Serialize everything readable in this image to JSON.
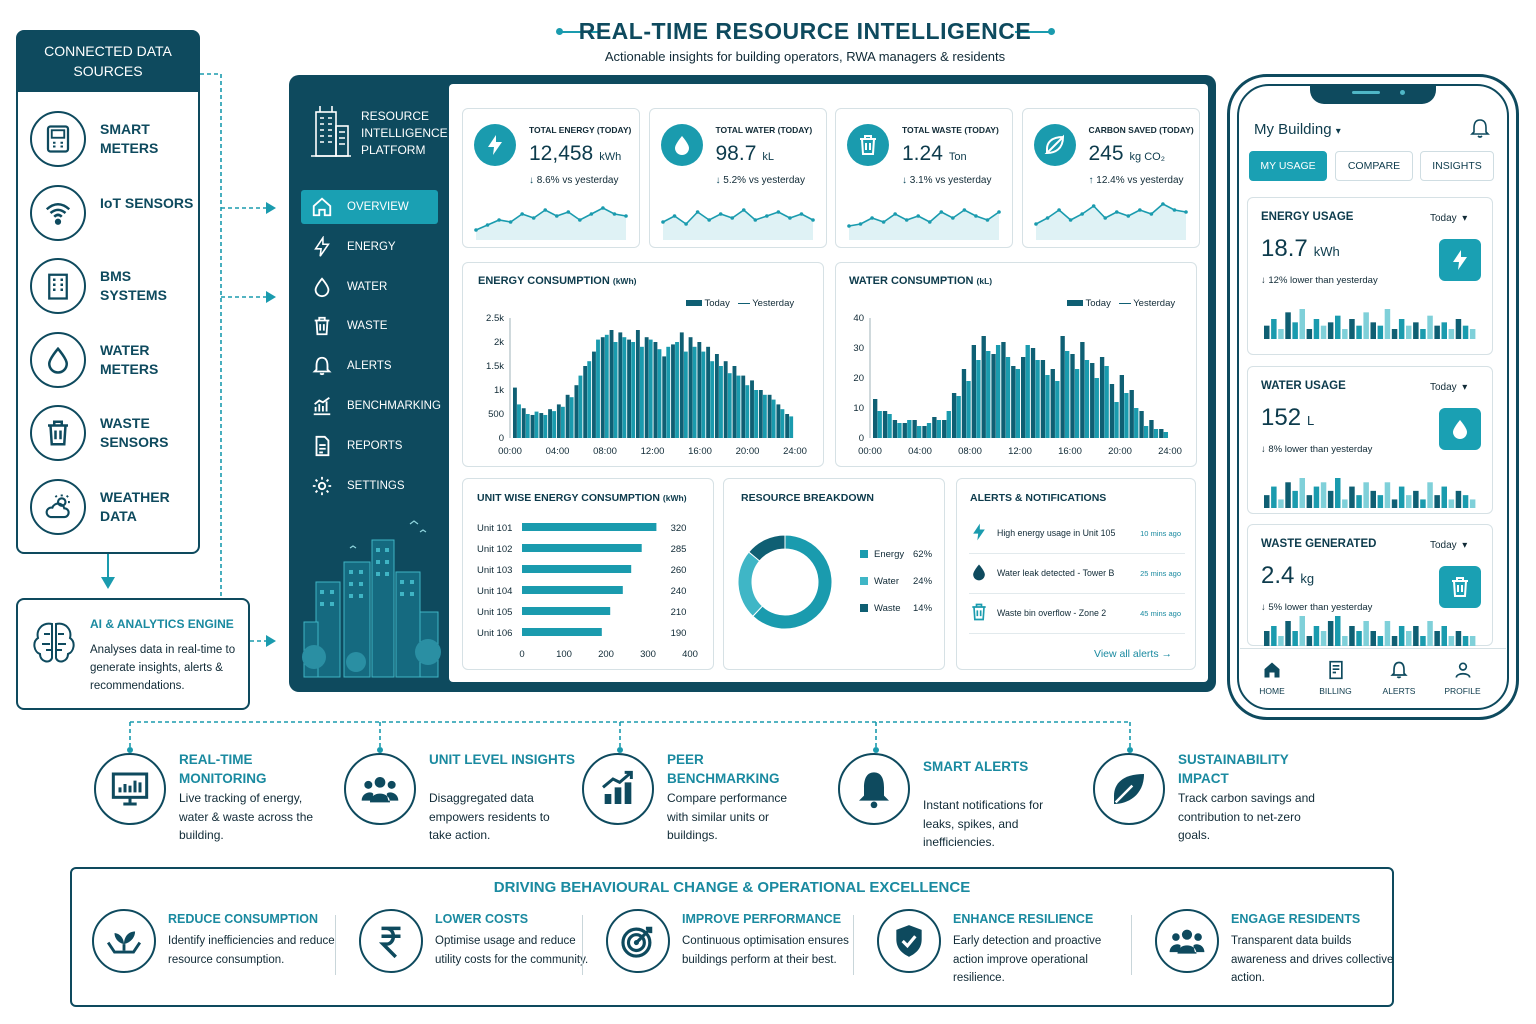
{
  "header": {
    "title": "REAL-TIME RESOURCE INTELLIGENCE",
    "subtitle": "Actionable insights for building operators, RWA managers & residents"
  },
  "sources": {
    "title": "CONNECTED DATA SOURCES",
    "items": [
      {
        "label": "SMART METERS",
        "icon": "meter-icon"
      },
      {
        "label": "IoT SENSORS",
        "icon": "wifi-sensor-icon"
      },
      {
        "label": "BMS SYSTEMS",
        "icon": "bms-icon"
      },
      {
        "label": "WATER METERS",
        "icon": "water-drop-icon"
      },
      {
        "label": "WASTE SENSORS",
        "icon": "trash-icon"
      },
      {
        "label": "WEATHER DATA",
        "icon": "weather-icon"
      }
    ]
  },
  "ai": {
    "title": "AI & ANALYTICS ENGINE",
    "desc": "Analyses data in real-time to generate insights, alerts & recommendations."
  },
  "platform": {
    "name": "RESOURCE INTELLIGENCE PLATFORM",
    "nav": [
      {
        "label": "OVERVIEW",
        "active": true
      },
      {
        "label": "ENERGY"
      },
      {
        "label": "WATER"
      },
      {
        "label": "WASTE"
      },
      {
        "label": "ALERTS"
      },
      {
        "label": "BENCHMARKING"
      },
      {
        "label": "REPORTS"
      },
      {
        "label": "SETTINGS"
      }
    ]
  },
  "kpis": [
    {
      "label": "TOTAL ENERGY (TODAY)",
      "value": "12,458",
      "unit": "kWh",
      "change": "8.6% vs yesterday",
      "dir": "down"
    },
    {
      "label": "TOTAL WATER (TODAY)",
      "value": "98.7",
      "unit": "kL",
      "change": "5.2% vs yesterday",
      "dir": "down"
    },
    {
      "label": "TOTAL WASTE (TODAY)",
      "value": "1.24",
      "unit": "Ton",
      "change": "3.1% vs yesterday",
      "dir": "down"
    },
    {
      "label": "CARBON SAVED (TODAY)",
      "value": "245",
      "unit": "kg CO₂",
      "change": "12.4% vs yesterday",
      "dir": "up"
    }
  ],
  "legend": {
    "today": "Today",
    "yesterday": "Yesterday"
  },
  "chart_data": [
    {
      "type": "bar",
      "title": "ENERGY CONSUMPTION",
      "unit": "(kWh)",
      "x_ticks": [
        "00:00",
        "04:00",
        "08:00",
        "12:00",
        "16:00",
        "20:00",
        "24:00"
      ],
      "y_ticks": [
        "0",
        "500",
        "1k",
        "1.5k",
        "2k",
        "2.5k"
      ],
      "ylim": [
        0,
        2500
      ],
      "series": [
        {
          "name": "Today",
          "values": [
            1050,
            620,
            480,
            520,
            600,
            700,
            900,
            1100,
            1500,
            1800,
            2100,
            2250,
            2200,
            2050,
            2250,
            2100,
            2000,
            1700,
            1950,
            2200,
            2100,
            2000,
            1900,
            1750,
            1600,
            1500,
            1300,
            1200,
            1000,
            900,
            700,
            500
          ]
        },
        {
          "name": "Yesterday",
          "values": [
            700,
            500,
            550,
            480,
            560,
            650,
            850,
            1300,
            1600,
            2050,
            2150,
            2000,
            2100,
            2000,
            1900,
            2050,
            1850,
            1900,
            2000,
            1800,
            1900,
            1800,
            1600,
            1500,
            1350,
            1300,
            1100,
            1000,
            900,
            800,
            600,
            450
          ]
        }
      ]
    },
    {
      "type": "bar",
      "title": "WATER CONSUMPTION",
      "unit": "(kL)",
      "x_ticks": [
        "00:00",
        "04:00",
        "08:00",
        "12:00",
        "16:00",
        "20:00",
        "24:00"
      ],
      "y_ticks": [
        "0",
        "10",
        "20",
        "30",
        "40"
      ],
      "ylim": [
        0,
        40
      ],
      "series": [
        {
          "name": "Today",
          "values": [
            13,
            9,
            6,
            5,
            6,
            4,
            7,
            6,
            15,
            23,
            31,
            34,
            28,
            32,
            24,
            27,
            30,
            26,
            23,
            34,
            28,
            32,
            25,
            27,
            18,
            21,
            16,
            9,
            6,
            3
          ]
        },
        {
          "name": "Yesterday",
          "values": [
            9,
            8,
            5,
            6,
            4,
            5,
            6,
            9,
            14,
            19,
            26,
            29,
            31,
            27,
            23,
            31,
            26,
            21,
            19,
            29,
            23,
            26,
            20,
            24,
            12,
            15,
            10,
            4,
            3,
            2
          ]
        }
      ]
    },
    {
      "type": "bar",
      "orientation": "horizontal",
      "title": "UNIT WISE ENERGY CONSUMPTION",
      "unit": "(kWh)",
      "categories": [
        "Unit 101",
        "Unit 102",
        "Unit 103",
        "Unit 104",
        "Unit 105",
        "Unit 106"
      ],
      "values": [
        320,
        285,
        260,
        240,
        210,
        190
      ],
      "x_ticks": [
        "0",
        "100",
        "200",
        "300",
        "400"
      ],
      "xlim": [
        0,
        400
      ]
    },
    {
      "type": "pie",
      "title": "RESOURCE BREAKDOWN",
      "donut": true,
      "slices": [
        {
          "label": "Energy",
          "value": 62,
          "pct": "62%"
        },
        {
          "label": "Water",
          "value": 24,
          "pct": "24%"
        },
        {
          "label": "Waste",
          "value": 14,
          "pct": "14%"
        }
      ]
    }
  ],
  "alerts": {
    "title": "ALERTS & NOTIFICATIONS",
    "items": [
      {
        "text": "High energy usage in Unit 105",
        "time": "10 mins ago",
        "icon": "bolt-icon"
      },
      {
        "text": "Water leak detected - Tower B",
        "time": "25 mins ago",
        "icon": "water-drop-icon"
      },
      {
        "text": "Waste bin overflow - Zone 2",
        "time": "45 mins ago",
        "icon": "trash-icon"
      }
    ],
    "link": "View all alerts"
  },
  "phone": {
    "title": "My Building",
    "tabs": [
      {
        "label": "MY USAGE",
        "active": true
      },
      {
        "label": "COMPARE"
      },
      {
        "label": "INSIGHTS"
      }
    ],
    "cards": [
      {
        "label": "ENERGY USAGE",
        "period": "Today",
        "value": "18.7",
        "unit": "kWh",
        "change": "12% lower than yesterday",
        "bars": [
          4,
          6,
          3,
          8,
          5,
          9,
          3,
          6,
          4,
          5,
          7,
          3,
          6,
          4,
          8,
          5,
          4,
          9,
          3,
          6,
          4,
          5,
          3,
          7,
          4,
          5,
          3,
          6,
          4,
          3
        ]
      },
      {
        "label": "WATER USAGE",
        "period": "Today",
        "value": "152",
        "unit": "L",
        "change": "8% lower than yesterday",
        "bars": [
          3,
          5,
          2,
          6,
          4,
          7,
          3,
          5,
          6,
          4,
          7,
          2,
          5,
          3,
          6,
          4,
          3,
          6,
          2,
          5,
          3,
          4,
          2,
          6,
          3,
          5,
          2,
          4,
          3,
          2
        ]
      },
      {
        "label": "WASTE GENERATED",
        "period": "Today",
        "value": "2.4",
        "unit": "kg",
        "change": "5% lower than yesterday",
        "bars": [
          3,
          4,
          2,
          5,
          3,
          6,
          2,
          4,
          3,
          5,
          6,
          2,
          4,
          3,
          5,
          3,
          2,
          5,
          2,
          4,
          3,
          4,
          2,
          5,
          3,
          4,
          2,
          3,
          2,
          2
        ]
      }
    ],
    "nav": [
      {
        "label": "HOME"
      },
      {
        "label": "BILLING"
      },
      {
        "label": "ALERTS"
      },
      {
        "label": "PROFILE"
      }
    ]
  },
  "features": [
    {
      "title": "REAL-TIME MONITORING",
      "desc": "Live tracking of energy, water & waste across the building."
    },
    {
      "title": "UNIT LEVEL INSIGHTS",
      "desc": "Disaggregated data empowers residents to take action."
    },
    {
      "title": "PEER BENCHMARKING",
      "desc": "Compare performance with similar units or buildings."
    },
    {
      "title": "SMART ALERTS",
      "desc": "Instant notifications for leaks, spikes, and inefficiencies."
    },
    {
      "title": "SUSTAINABILITY IMPACT",
      "desc": "Track carbon savings and contribution to net-zero goals."
    }
  ],
  "benefits": {
    "title": "DRIVING BEHAVIOURAL CHANGE & OPERATIONAL EXCELLENCE",
    "items": [
      {
        "title": "REDUCE CONSUMPTION",
        "desc": "Identify inefficiencies and reduce resource consumption."
      },
      {
        "title": "LOWER COSTS",
        "desc": "Optimise usage and reduce utility costs for the community."
      },
      {
        "title": "IMPROVE PERFORMANCE",
        "desc": "Continuous optimisation ensures buildings perform at their best."
      },
      {
        "title": "ENHANCE RESILIENCE",
        "desc": "Early detection and proactive action improve operational resilience."
      },
      {
        "title": "ENGAGE RESIDENTS",
        "desc": "Transparent data builds awareness and drives collective action."
      }
    ]
  },
  "colors": {
    "navy": "#0e4a5e",
    "teal": "#1a9bae",
    "dark_teal": "#0f5f73",
    "light_teal": "#7fd0d9"
  }
}
